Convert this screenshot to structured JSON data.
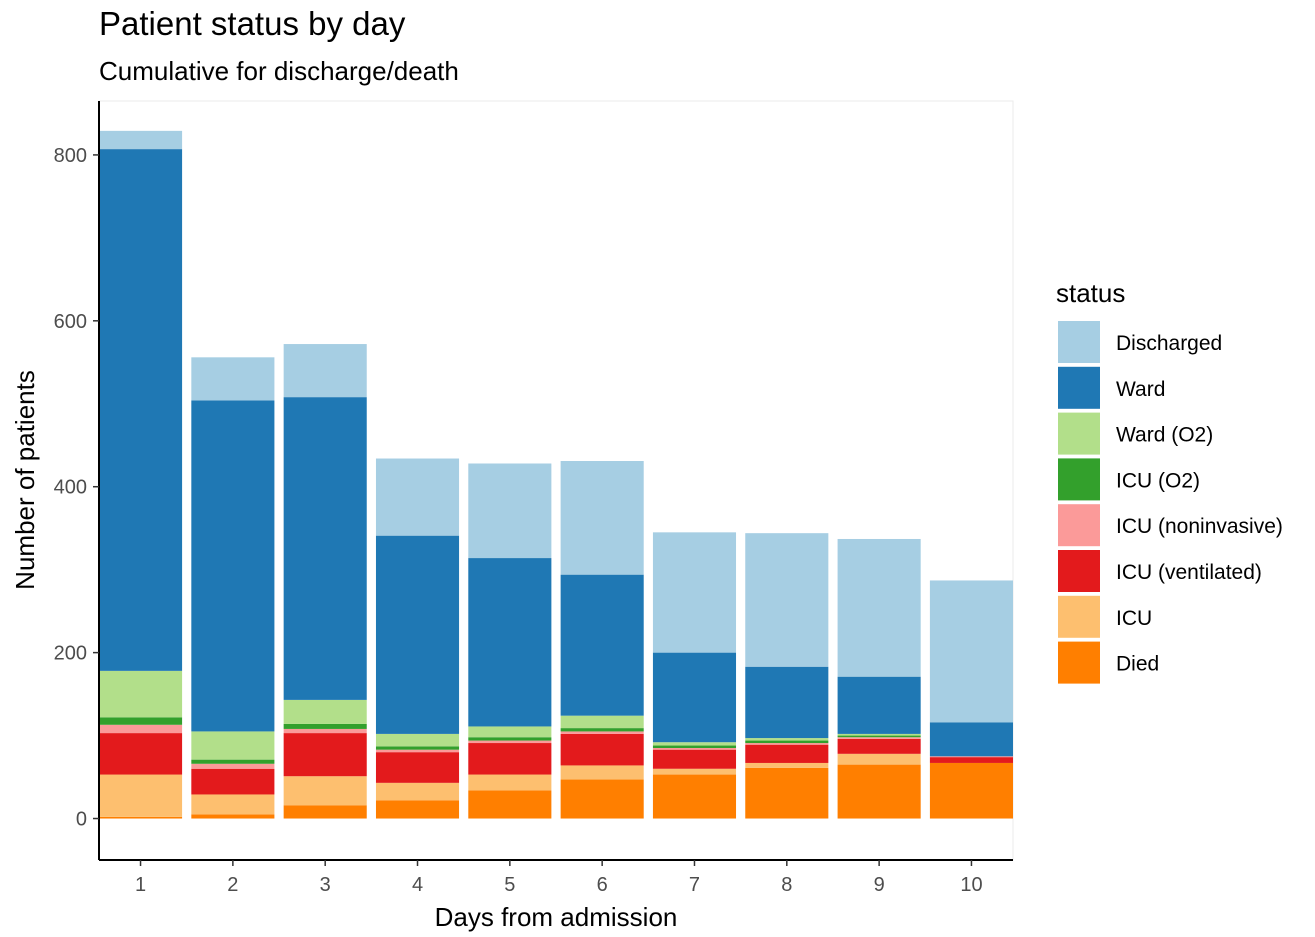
{
  "chart_data": {
    "type": "bar",
    "stacked": true,
    "title": "Patient status by day",
    "subtitle": "Cumulative for discharge/death",
    "xlabel": "Days from admission",
    "ylabel": "Number of patients",
    "categories": [
      "1",
      "2",
      "3",
      "4",
      "5",
      "6",
      "7",
      "8",
      "9",
      "10"
    ],
    "ylim": [
      -50,
      865
    ],
    "yticks": [
      0,
      200,
      400,
      600,
      800
    ],
    "grid": false,
    "legend": {
      "title": "status",
      "position": "right"
    },
    "series": [
      {
        "name": "Died",
        "color": "#FF7F00",
        "values": [
          2,
          5,
          16,
          22,
          34,
          47,
          53,
          61,
          65,
          67
        ]
      },
      {
        "name": "ICU",
        "color": "#FDBF6F",
        "values": [
          51,
          24,
          35,
          21,
          19,
          17,
          7,
          6,
          13,
          0
        ]
      },
      {
        "name": "ICU (ventilated)",
        "color": "#E31A1C",
        "values": [
          50,
          31,
          52,
          37,
          38,
          38,
          23,
          22,
          18,
          7
        ]
      },
      {
        "name": "ICU (noninvasive)",
        "color": "#FB9A99",
        "values": [
          10,
          6,
          5,
          3,
          3,
          3,
          2,
          2,
          2,
          1
        ]
      },
      {
        "name": "ICU (O2)",
        "color": "#33A02C",
        "values": [
          9,
          5,
          6,
          4,
          4,
          4,
          3,
          3,
          2,
          0
        ]
      },
      {
        "name": "Ward (O2)",
        "color": "#B2DF8A",
        "values": [
          56,
          34,
          29,
          15,
          13,
          15,
          4,
          3,
          2,
          0
        ]
      },
      {
        "name": "Ward",
        "color": "#1F78B4",
        "values": [
          629,
          399,
          365,
          239,
          203,
          170,
          108,
          86,
          69,
          41
        ]
      },
      {
        "name": "Discharged",
        "color": "#A6CEE3",
        "values": [
          22,
          52,
          64,
          93,
          114,
          137,
          145,
          161,
          166,
          171
        ]
      }
    ]
  }
}
